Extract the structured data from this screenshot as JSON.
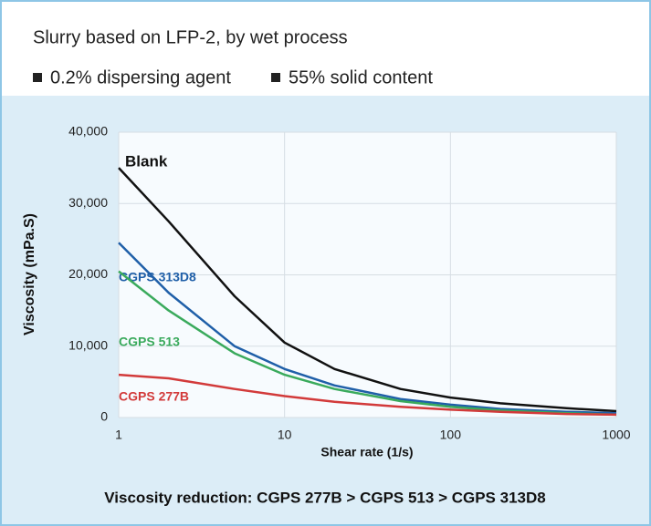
{
  "chart_data": {
    "type": "line",
    "title": "Slurry based on LFP-2, by wet process",
    "annotations": [
      "0.2% dispersing agent",
      "55% solid content"
    ],
    "caption": "Viscosity reduction: CGPS 277B > CGPS 513 > CGPS 313D8",
    "xlabel": "Shear rate (1/s)",
    "ylabel": "Viscosity (mPa.S)",
    "xscale": "log",
    "x": [
      1,
      2,
      5,
      10,
      20,
      50,
      100,
      200,
      500,
      1000
    ],
    "xlim": [
      1,
      1000
    ],
    "xticks": [
      1,
      10,
      100,
      1000
    ],
    "ylim": [
      0,
      40000
    ],
    "yticks": [
      0,
      {
        "value": 10000,
        "label": "10,000"
      },
      {
        "value": 20000,
        "label": "20,000"
      },
      {
        "value": 30000,
        "label": "30,000"
      },
      {
        "value": 40000,
        "label": "40,000"
      }
    ],
    "grid": true,
    "series": [
      {
        "name": "Blank",
        "color": "#111111",
        "values": [
          35000,
          27500,
          17000,
          10500,
          6800,
          4000,
          2800,
          2000,
          1300,
          900
        ]
      },
      {
        "name": "CGPS 313D8",
        "color": "#1f5fa8",
        "values": [
          24500,
          17500,
          10000,
          6800,
          4500,
          2600,
          1800,
          1200,
          800,
          600
        ]
      },
      {
        "name": "CGPS 513",
        "color": "#3aaa5c",
        "values": [
          20500,
          15000,
          9000,
          6000,
          4000,
          2300,
          1500,
          1000,
          600,
          400
        ]
      },
      {
        "name": "CGPS 277B",
        "color": "#d23a3a",
        "values": [
          6000,
          5500,
          4000,
          3000,
          2200,
          1500,
          1100,
          800,
          500,
          400
        ]
      }
    ]
  }
}
